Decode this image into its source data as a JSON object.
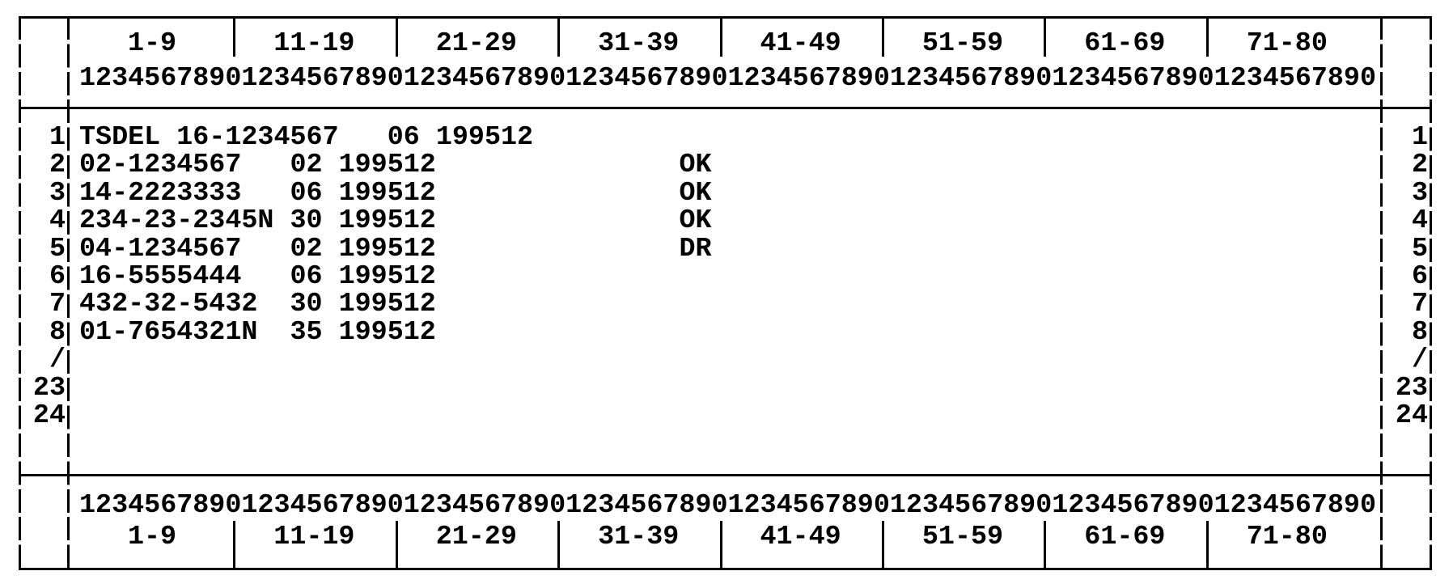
{
  "ranges": [
    "1-9",
    "11-19",
    "21-29",
    "31-39",
    "41-49",
    "51-59",
    "61-69",
    "71-80"
  ],
  "ruler": "12345678901234567890123456789012345678901234567890123456789012345678901234567890",
  "line_numbers": [
    "1",
    "2",
    "3",
    "4",
    "5",
    "6",
    "7",
    "8",
    "/",
    "23",
    "24"
  ],
  "rows": [
    {
      "text": "TSDEL 16-1234567   06 199512",
      "status": ""
    },
    {
      "text": "02-1234567   02 199512",
      "status": "OK"
    },
    {
      "text": "14-2223333   06 199512",
      "status": "OK"
    },
    {
      "text": "234-23-2345N 30 199512",
      "status": "OK"
    },
    {
      "text": "04-1234567   02 199512",
      "status": "DR"
    },
    {
      "text": "16-5555444   06 199512",
      "status": ""
    },
    {
      "text": "432-32-5432  30 199512",
      "status": ""
    },
    {
      "text": "01-7654321N  35 199512",
      "status": ""
    }
  ]
}
